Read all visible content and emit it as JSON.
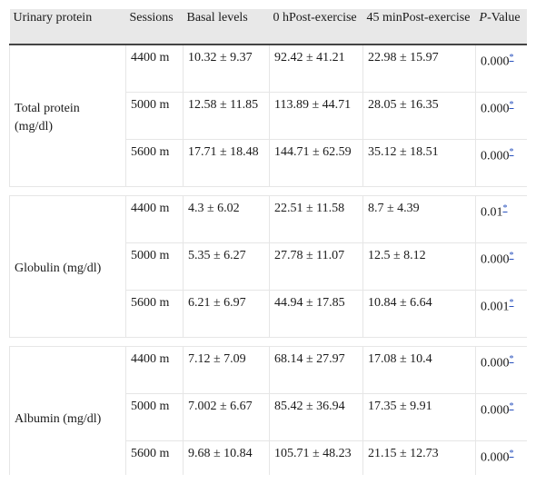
{
  "header": {
    "urinary_protein": "Urinary protein",
    "sessions": "Sessions",
    "basal": "Basal levels",
    "h0": "0 hPost-exercise",
    "m45": "45 minPost-exercise",
    "p_italic": "P",
    "p_rest": "-Value"
  },
  "footnote_mark": "*",
  "groups": [
    {
      "name": "Total protein (mg/dl)",
      "rows": [
        {
          "session": "4400 m",
          "basal": "10.32 ± 9.37",
          "h0": "92.42 ± 41.21",
          "m45": "22.98 ± 15.97",
          "p": "0.000"
        },
        {
          "session": "5000 m",
          "basal": "12.58 ± 11.85",
          "h0": "113.89 ± 44.71",
          "m45": "28.05 ± 16.35",
          "p": "0.000"
        },
        {
          "session": "5600 m",
          "basal": "17.71 ± 18.48",
          "h0": "144.71 ± 62.59",
          "m45": "35.12 ± 18.51",
          "p": "0.000"
        }
      ]
    },
    {
      "name": "Globulin (mg/dl)",
      "rows": [
        {
          "session": "4400 m",
          "basal": "4.3 ± 6.02",
          "h0": "22.51 ± 11.58",
          "m45": "8.7 ± 4.39",
          "p": "0.01"
        },
        {
          "session": "5000 m",
          "basal": "5.35 ± 6.27",
          "h0": "27.78 ± 11.07",
          "m45": "12.5 ± 8.12",
          "p": "0.000"
        },
        {
          "session": "5600 m",
          "basal": "6.21 ± 6.97",
          "h0": "44.94 ± 17.85",
          "m45": "10.84 ± 6.64",
          "p": "0.001"
        }
      ]
    },
    {
      "name": "Albumin (mg/dl)",
      "rows": [
        {
          "session": "4400 m",
          "basal": "7.12 ± 7.09",
          "h0": "68.14 ± 27.97",
          "m45": "17.08 ± 10.4",
          "p": "0.000"
        },
        {
          "session": "5000 m",
          "basal": "7.002 ± 6.67",
          "h0": "85.42 ± 36.94",
          "m45": "17.35 ± 9.91",
          "p": "0.000"
        },
        {
          "session": "5600 m",
          "basal": "9.68 ± 10.84",
          "h0": "105.71 ± 48.23",
          "m45": "21.15 ± 12.73",
          "p": "0.000"
        }
      ]
    }
  ]
}
